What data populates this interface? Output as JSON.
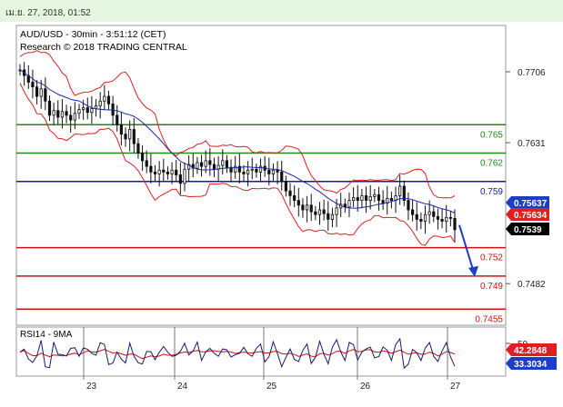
{
  "header": {
    "datetime": "เม.ย. 27, 2018, 01:52"
  },
  "chart_data": [
    {
      "type": "candlestick",
      "title": "AUD/USD - 30min - 3:51:12 (CET)",
      "subtitle": "Research © 2018 TRADING CENTRAL",
      "y_ticks": [
        "0.7706",
        "0.7631",
        "0.7482"
      ],
      "y_tick_values": [
        0.7706,
        0.7631,
        0.7482
      ],
      "ylim": [
        0.7438,
        0.7755
      ],
      "x_ticks": [
        "23",
        "24",
        "25",
        "26",
        "27"
      ],
      "levels": [
        {
          "label": "0.765",
          "value": 0.765,
          "color": "#1a8a1a"
        },
        {
          "label": "0.762",
          "value": 0.762,
          "color": "#1a8a1a"
        },
        {
          "label": "0.759",
          "value": 0.759,
          "color": "#1a1aa0"
        },
        {
          "label": "0.752",
          "value": 0.752,
          "color": "#d01010"
        },
        {
          "label": "0.749",
          "value": 0.749,
          "color": "#d01010"
        },
        {
          "label": "0.7455",
          "value": 0.7455,
          "color": "#d01010"
        }
      ],
      "price_badges": [
        {
          "label": "0.75637",
          "value": 0.75637,
          "color": "#1a3ec8"
        },
        {
          "label": "0.75634",
          "value": 0.75634,
          "color": "#e02020"
        },
        {
          "label": "0.7539",
          "value": 0.7539,
          "color": "#000000"
        }
      ],
      "close_series": [
        0.7708,
        0.7702,
        0.7695,
        0.769,
        0.768,
        0.7688,
        0.7675,
        0.766,
        0.7665,
        0.7658,
        0.7664,
        0.766,
        0.7655,
        0.7662,
        0.7666,
        0.7668,
        0.7663,
        0.7667,
        0.767,
        0.7675,
        0.768,
        0.7672,
        0.766,
        0.765,
        0.764,
        0.7635,
        0.7645,
        0.763,
        0.762,
        0.7612,
        0.7606,
        0.76,
        0.7598,
        0.7602,
        0.76,
        0.7598,
        0.7602,
        0.7597,
        0.7588,
        0.7603,
        0.7608,
        0.7604,
        0.761,
        0.7606,
        0.7612,
        0.7608,
        0.7603,
        0.7607,
        0.7612,
        0.7605,
        0.76,
        0.7606,
        0.76,
        0.7598,
        0.7602,
        0.7603,
        0.76,
        0.7606,
        0.7602,
        0.7598,
        0.7602,
        0.76,
        0.759,
        0.758,
        0.7575,
        0.757,
        0.7565,
        0.756,
        0.7565,
        0.7558,
        0.7555,
        0.756,
        0.7556,
        0.755,
        0.7555,
        0.7562,
        0.7566,
        0.7563,
        0.757,
        0.7573,
        0.757,
        0.7575,
        0.757,
        0.7574,
        0.7576,
        0.757,
        0.7567,
        0.7572,
        0.757,
        0.7575,
        0.7585,
        0.757,
        0.756,
        0.7555,
        0.755,
        0.7548,
        0.7555,
        0.7558,
        0.7553,
        0.755,
        0.7548,
        0.7552,
        0.7551,
        0.7539
      ],
      "projection": {
        "from": 0.7544,
        "to": 0.749
      },
      "rsi": {
        "label": "RSI14 - 9MA",
        "y_ticks": [
          "50"
        ],
        "badges": [
          {
            "label": "42.2848",
            "value": 42.2848,
            "color": "#e02020"
          },
          {
            "label": "33.3034",
            "value": 33.3034,
            "color": "#1a3ec8"
          }
        ]
      }
    }
  ]
}
